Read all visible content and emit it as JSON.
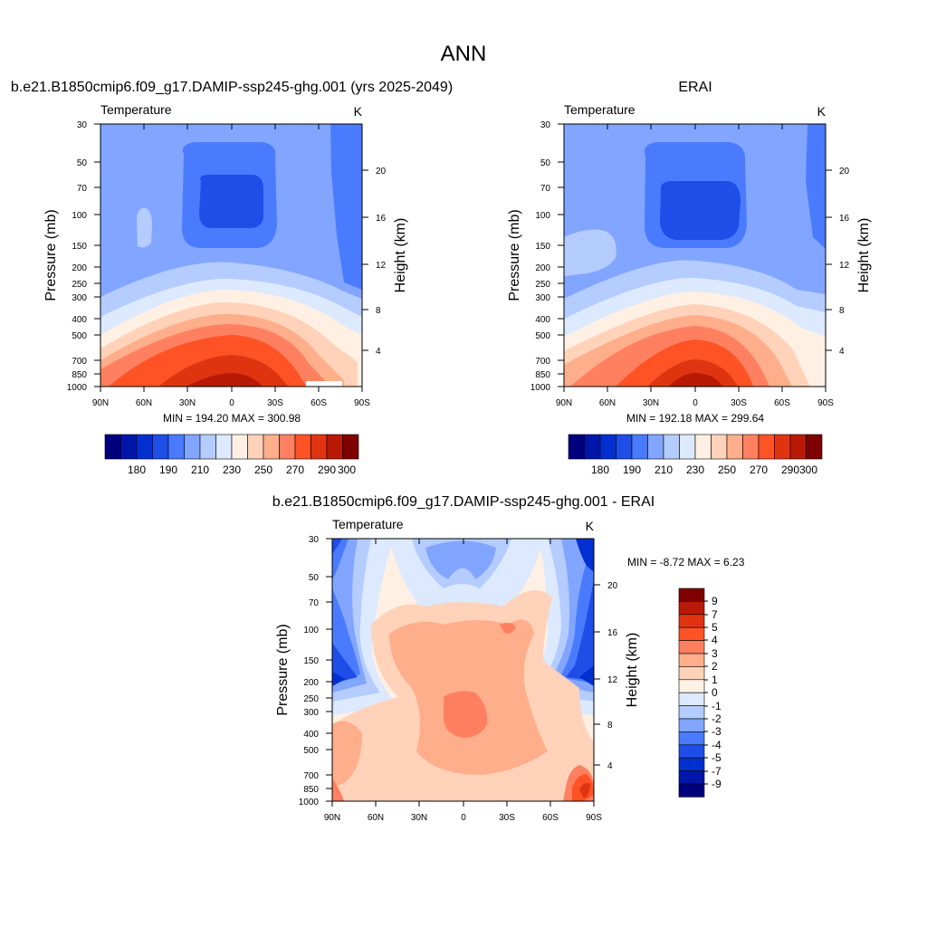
{
  "title": "ANN",
  "colors": {
    "abs_levels": [
      "#00007f",
      "#0016aa",
      "#0030d0",
      "#1e4de8",
      "#4a7bff",
      "#82a6ff",
      "#b4ccff",
      "#dce9ff",
      "#fff0e3",
      "#ffd2b9",
      "#ffae8c",
      "#ff8060",
      "#ff5225",
      "#e03411",
      "#b81a06",
      "#7f0000"
    ],
    "diff_levels": [
      "#00007f",
      "#0016aa",
      "#0030d0",
      "#1e4de8",
      "#4a7bff",
      "#82a6ff",
      "#b4ccff",
      "#dce9ff",
      "#fff0e3",
      "#ffd2b9",
      "#ffae8c",
      "#ff8060",
      "#ff5225",
      "#e03411",
      "#b81a06",
      "#7f0000"
    ]
  },
  "chart_data": [
    {
      "type": "contour",
      "title": "b.e21.B1850cmip6.f09_g17.DAMIP-ssp245-ghg.001 (yrs 2025-2049)",
      "variable": "Temperature",
      "units": "K",
      "ylabel": "Pressure (mb)",
      "y2label": "Height (km)",
      "x_ticks": [
        "90N",
        "60N",
        "30N",
        "0",
        "30S",
        "60S",
        "90S"
      ],
      "y_ticks": [
        "30",
        "50",
        "70",
        "100",
        "150",
        "200",
        "250",
        "300",
        "400",
        "500",
        "700",
        "850",
        "1000"
      ],
      "y2_ticks": [
        "20",
        "16",
        "12",
        "8",
        "4"
      ],
      "stats": "MIN = 194.20  MAX = 300.98",
      "colorbar_labels": [
        "180",
        "190",
        "210",
        "230",
        "250",
        "270",
        "290",
        "300"
      ]
    },
    {
      "type": "contour",
      "title": "ERAI",
      "variable": "Temperature",
      "units": "K",
      "ylabel": "Pressure (mb)",
      "y2label": "Height (km)",
      "x_ticks": [
        "90N",
        "60N",
        "30N",
        "0",
        "30S",
        "60S",
        "90S"
      ],
      "y_ticks": [
        "30",
        "50",
        "70",
        "100",
        "150",
        "200",
        "250",
        "300",
        "400",
        "500",
        "700",
        "850",
        "1000"
      ],
      "y2_ticks": [
        "20",
        "16",
        "12",
        "8",
        "4"
      ],
      "stats": "MIN = 192.18  MAX = 299.64",
      "colorbar_labels": [
        "180",
        "190",
        "210",
        "230",
        "250",
        "270",
        "290",
        "300"
      ]
    },
    {
      "type": "contour",
      "title": "b.e21.B1850cmip6.f09_g17.DAMIP-ssp245-ghg.001 - ERAI",
      "variable": "Temperature",
      "units": "K",
      "ylabel": "Pressure (mb)",
      "y2label": "Height (km)",
      "x_ticks": [
        "90N",
        "60N",
        "30N",
        "0",
        "30S",
        "60S",
        "90S"
      ],
      "y_ticks": [
        "30",
        "50",
        "70",
        "100",
        "150",
        "200",
        "250",
        "300",
        "400",
        "500",
        "700",
        "850",
        "1000"
      ],
      "y2_ticks": [
        "20",
        "16",
        "12",
        "8",
        "4"
      ],
      "stats": "MIN =  -8.72  MAX =   6.23",
      "colorbar_labels": [
        "9",
        "7",
        "5",
        "4",
        "3",
        "2",
        "1",
        "0",
        "-1",
        "-2",
        "-3",
        "-4",
        "-5",
        "-7",
        "-9"
      ]
    }
  ]
}
